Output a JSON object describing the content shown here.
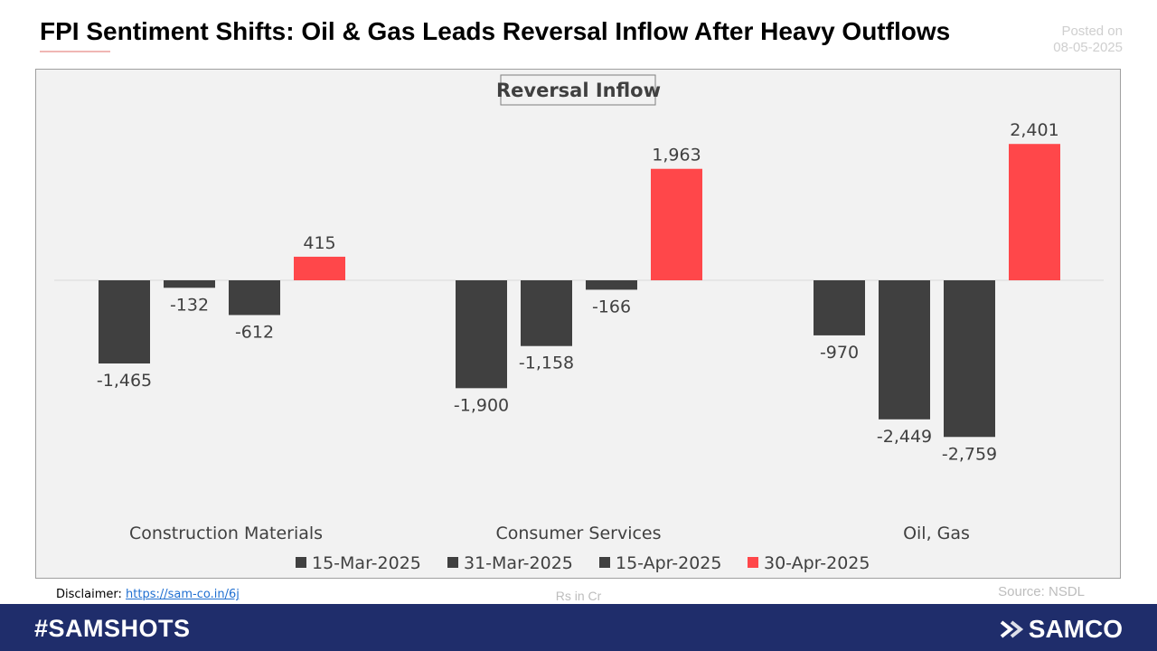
{
  "header": {
    "title": "FPI Sentiment Shifts: Oil & Gas Leads Reversal Inflow After Heavy Outflows",
    "posted_label": "Posted on",
    "posted_date": "08-05-2025"
  },
  "footer": {
    "disclaimer_label": "Disclaimer:",
    "disclaimer_link": "https://sam-co.in/6j",
    "units": "Rs in Cr",
    "source": "Source: NSDL",
    "hashtag": "#SAMSHOTS",
    "brand": "SAMCO"
  },
  "colors": {
    "series_dark": "#404040",
    "series_red": "#ff474a",
    "footer_bg": "#1f2d6b"
  },
  "chart_data": {
    "type": "bar",
    "title": "Reversal Inflow",
    "categories": [
      "Construction Materials",
      "Consumer Services",
      "Oil, Gas"
    ],
    "series": [
      {
        "name": "15-Mar-2025",
        "values": [
          -1465,
          -1900,
          -970
        ],
        "labels": [
          "-1,465",
          "-1,900",
          "-970"
        ],
        "color": "#404040"
      },
      {
        "name": "31-Mar-2025",
        "values": [
          -132,
          -1158,
          -2449
        ],
        "labels": [
          "-132",
          "-1,158",
          "-2,449"
        ],
        "color": "#404040"
      },
      {
        "name": "15-Apr-2025",
        "values": [
          -612,
          -166,
          -2759
        ],
        "labels": [
          "-612",
          "-166",
          "-2,759"
        ],
        "color": "#404040"
      },
      {
        "name": "30-Apr-2025",
        "values": [
          415,
          1963,
          2401
        ],
        "labels": [
          "415",
          "1,963",
          "2,401"
        ],
        "color": "#ff474a"
      }
    ],
    "ylim": [
      -2759,
      2401
    ],
    "grid": false,
    "legend": "bottom"
  }
}
